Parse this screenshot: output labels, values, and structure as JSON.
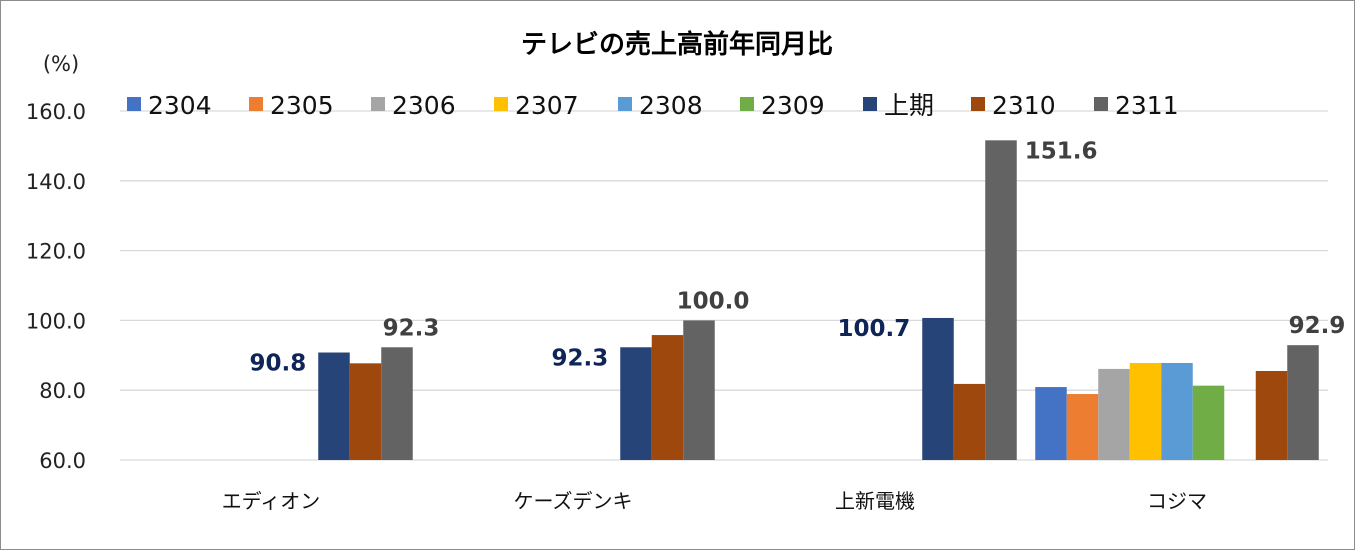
{
  "chart_data": {
    "type": "bar",
    "title": "テレビの売上高前年同月比",
    "ylabel": "(%)",
    "xlabel": "",
    "ylim": [
      60,
      160
    ],
    "yticks": [
      "160.0",
      "140.0",
      "120.0",
      "100.0",
      "80.0",
      "60.0"
    ],
    "ytick_values": [
      160,
      140,
      120,
      100,
      80,
      60
    ],
    "grid": true,
    "legend_position": "top",
    "categories": [
      "エディオン",
      "ケーズデンキ",
      "上新電機",
      "コジマ"
    ],
    "series": [
      {
        "name": "2304",
        "color": "#4472c4",
        "values": [
          null,
          null,
          null,
          80.9
        ]
      },
      {
        "name": "2305",
        "color": "#ed7d31",
        "values": [
          null,
          null,
          null,
          78.9
        ]
      },
      {
        "name": "2306",
        "color": "#a5a5a5",
        "values": [
          null,
          null,
          null,
          86.1
        ]
      },
      {
        "name": "2307",
        "color": "#ffc000",
        "values": [
          null,
          null,
          null,
          87.8
        ]
      },
      {
        "name": "2308",
        "color": "#5b9bd5",
        "values": [
          null,
          null,
          null,
          87.8
        ]
      },
      {
        "name": "2309",
        "color": "#70ad47",
        "values": [
          null,
          null,
          null,
          81.3
        ]
      },
      {
        "name": "上期",
        "color": "#264478",
        "values": [
          90.8,
          92.3,
          100.7,
          null
        ]
      },
      {
        "name": "2310",
        "color": "#9e480e",
        "values": [
          87.7,
          95.8,
          81.8,
          85.5
        ]
      },
      {
        "name": "2311",
        "color": "#636363",
        "values": [
          92.3,
          100.0,
          151.6,
          92.9
        ]
      }
    ],
    "data_labels": [
      {
        "series": "上期",
        "category": "エディオン",
        "text": "90.8",
        "color": "#0f2557"
      },
      {
        "series": "2311",
        "category": "エディオン",
        "text": "92.3",
        "color": "#404040"
      },
      {
        "series": "上期",
        "category": "ケーズデンキ",
        "text": "92.3",
        "color": "#0f2557"
      },
      {
        "series": "2311",
        "category": "ケーズデンキ",
        "text": "100.0",
        "color": "#404040"
      },
      {
        "series": "上期",
        "category": "上新電機",
        "text": "100.7",
        "color": "#0f2557"
      },
      {
        "series": "2311",
        "category": "上新電機",
        "text": "151.6",
        "color": "#404040"
      },
      {
        "series": "2311",
        "category": "コジマ",
        "text": "92.9",
        "color": "#404040"
      }
    ],
    "gridline_color": "#d9d9d9"
  }
}
